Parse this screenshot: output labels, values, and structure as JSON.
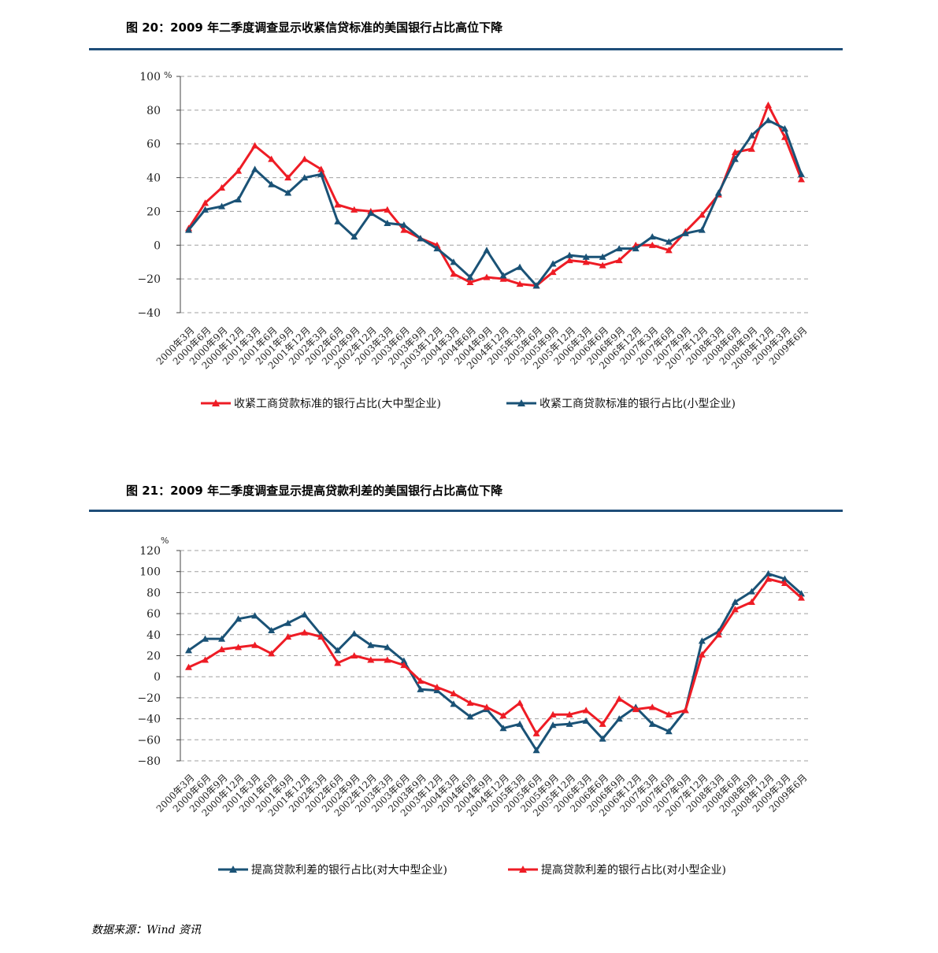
{
  "figures": [
    {
      "title": "图 20：2009 年二季度调查显示收紧信贷标准的美国银行占比高位下降"
    },
    {
      "title": "图 21：2009 年二季度调查显示提高贷款利差的美国银行占比高位下降"
    }
  ],
  "source": "数据来源：Wind 资讯",
  "colors": {
    "red": "#ee1c25",
    "blue": "#1a5276",
    "rule": "#1f4e79",
    "grid": "#a0a0a0"
  },
  "chart_data": [
    {
      "type": "line",
      "unit": "%",
      "ylim": [
        -40,
        100
      ],
      "yticks": [
        -40,
        -20,
        0,
        20,
        40,
        60,
        80,
        100
      ],
      "ytick_labels": [
        "−40",
        "−20",
        "0",
        "20",
        "40",
        "60",
        "80",
        "100"
      ],
      "grid": true,
      "legend_position": "bottom",
      "categories": [
        "2000年3月",
        "2000年6月",
        "2000年9月",
        "2000年12月",
        "2001年3月",
        "2001年6月",
        "2001年9月",
        "2001年12月",
        "2002年3月",
        "2002年6月",
        "2002年9月",
        "2002年12月",
        "2003年3月",
        "2003年6月",
        "2003年9月",
        "2003年12月",
        "2004年3月",
        "2004年6月",
        "2004年9月",
        "2004年12月",
        "2005年3月",
        "2005年6月",
        "2005年9月",
        "2005年12月",
        "2006年3月",
        "2006年6月",
        "2006年9月",
        "2006年12月",
        "2007年3月",
        "2007年6月",
        "2007年9月",
        "2007年12月",
        "2008年3月",
        "2008年6月",
        "2008年9月",
        "2008年12月",
        "2009年3月",
        "2009年6月"
      ],
      "series": [
        {
          "name": "收紧工商贷款标准的银行占比(大中型企业)",
          "color": "red",
          "values": [
            10,
            25,
            34,
            44,
            59,
            51,
            40,
            51,
            45,
            24,
            21,
            20,
            21,
            9,
            4,
            0,
            -17,
            -22,
            -19,
            -20,
            -23,
            -24,
            -16,
            -9,
            -10,
            -12,
            -9,
            0,
            0,
            -3,
            8,
            18,
            30,
            55,
            57,
            83,
            64,
            39
          ]
        },
        {
          "name": "收紧工商贷款标准的银行占比(小型企业)",
          "color": "blue",
          "values": [
            9,
            21,
            23,
            27,
            45,
            36,
            31,
            40,
            42,
            14,
            5,
            19,
            13,
            12,
            4,
            -2,
            -10,
            -19,
            -3,
            -18,
            -13,
            -24,
            -11,
            -6,
            -7,
            -7,
            -2,
            -2,
            5,
            2,
            7,
            9,
            31,
            51,
            65,
            74,
            69,
            42
          ]
        }
      ]
    },
    {
      "type": "line",
      "unit": "%",
      "ylim": [
        -80,
        120
      ],
      "yticks": [
        -80,
        -60,
        -40,
        -20,
        0,
        20,
        40,
        60,
        80,
        100,
        120
      ],
      "ytick_labels": [
        "−80",
        "−60",
        "−40",
        "−20",
        "0",
        "20",
        "40",
        "60",
        "80",
        "100",
        "120"
      ],
      "grid": true,
      "legend_position": "bottom",
      "categories": [
        "2000年3月",
        "2000年6月",
        "2000年9月",
        "2000年12月",
        "2001年3月",
        "2001年6月",
        "2001年9月",
        "2001年12月",
        "2002年3月",
        "2002年6月",
        "2002年9月",
        "2002年12月",
        "2003年3月",
        "2003年6月",
        "2003年9月",
        "2003年12月",
        "2004年3月",
        "2004年6月",
        "2004年9月",
        "2004年12月",
        "2005年3月",
        "2005年6月",
        "2005年9月",
        "2005年12月",
        "2006年3月",
        "2006年6月",
        "2006年9月",
        "2006年12月",
        "2007年3月",
        "2007年6月",
        "2007年9月",
        "2007年12月",
        "2008年3月",
        "2008年6月",
        "2008年9月",
        "2008年12月",
        "2009年3月",
        "2009年6月"
      ],
      "series": [
        {
          "name": "提高贷款利差的银行占比(对大中型企业)",
          "color": "blue",
          "values": [
            25,
            36,
            36,
            55,
            58,
            44,
            51,
            59,
            40,
            25,
            41,
            30,
            28,
            15,
            -12,
            -13,
            -26,
            -38,
            -31,
            -49,
            -45,
            -70,
            -46,
            -45,
            -42,
            -59,
            -40,
            -29,
            -45,
            -52,
            -32,
            34,
            43,
            71,
            81,
            98,
            93,
            79
          ]
        },
        {
          "name": "提高贷款利差的银行占比(对小型企业)",
          "color": "red",
          "values": [
            9,
            16,
            26,
            28,
            30,
            22,
            38,
            42,
            38,
            13,
            20,
            16,
            16,
            11,
            -4,
            -10,
            -16,
            -25,
            -29,
            -37,
            -25,
            -54,
            -36,
            -36,
            -32,
            -45,
            -21,
            -31,
            -29,
            -36,
            -32,
            21,
            40,
            64,
            71,
            93,
            89,
            75
          ]
        }
      ]
    }
  ]
}
